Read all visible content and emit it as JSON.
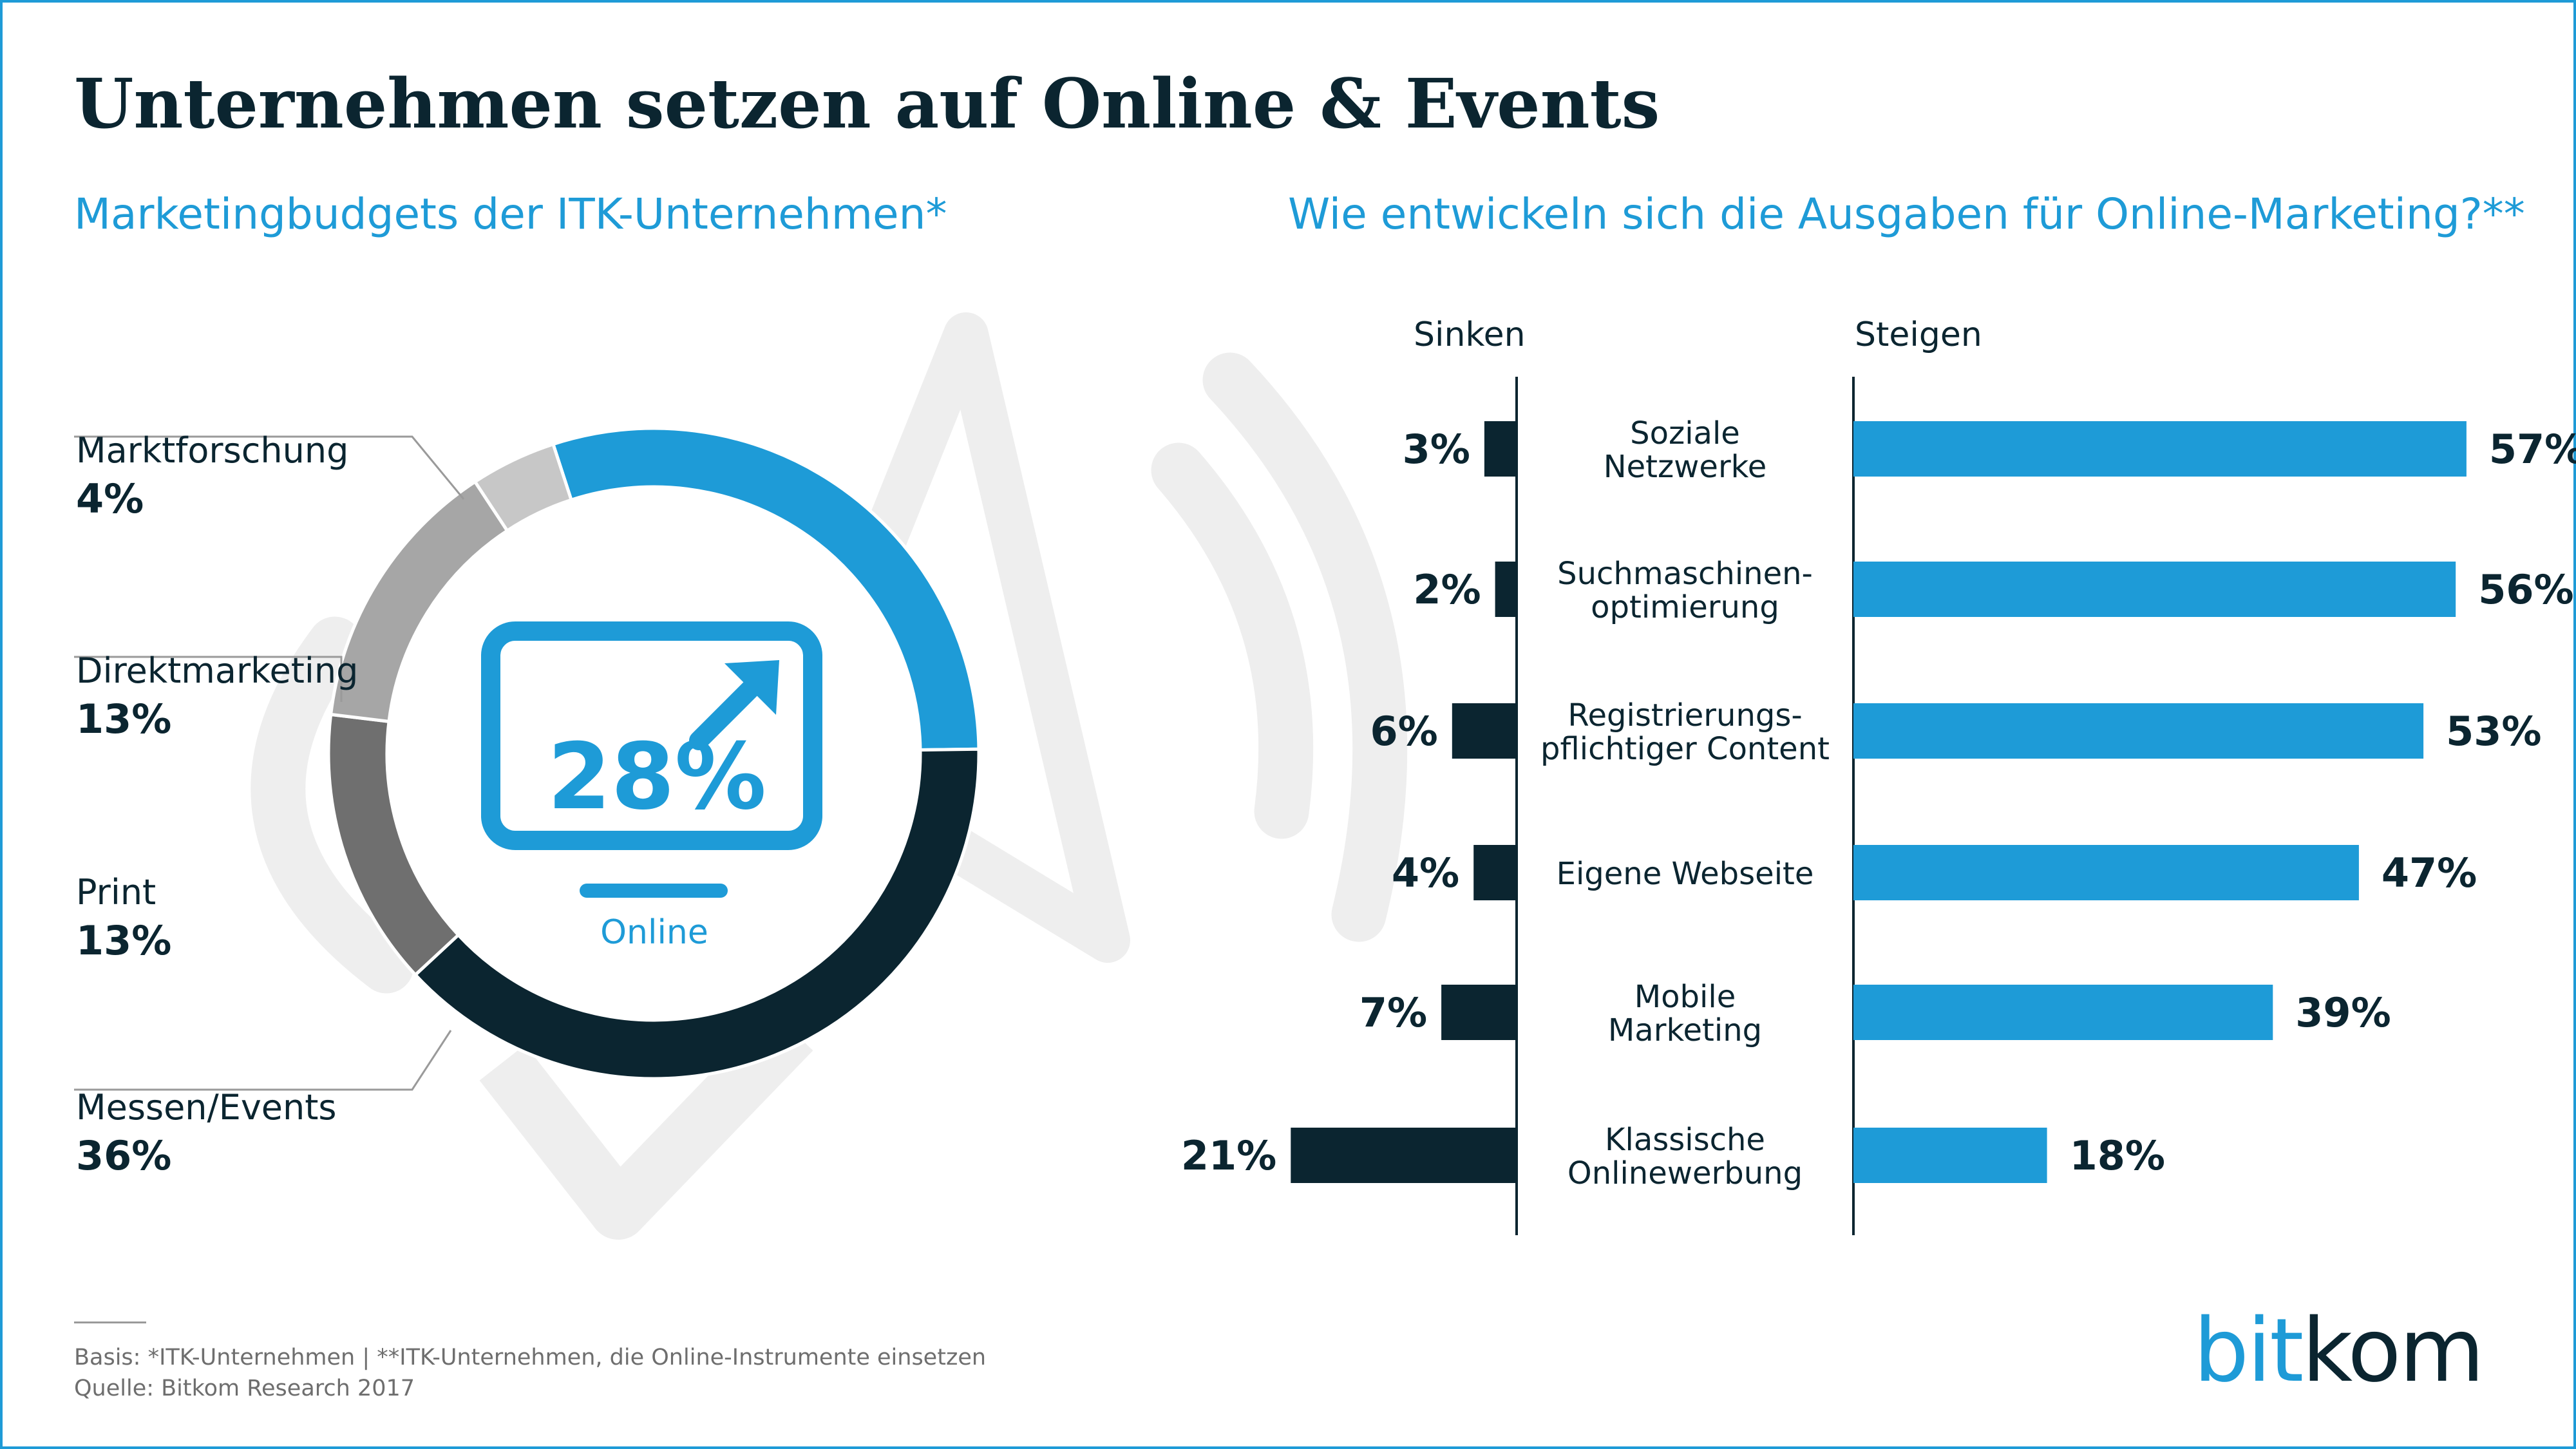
{
  "title": "Unternehmen setzen auf Online & Events",
  "colors": {
    "accent": "#1e9bd7",
    "dark": "#0b2530",
    "gray_light": "#c7c7c7",
    "gray_mid": "#a6a6a6",
    "gray_dark": "#6f6f6f",
    "watermark": "#eeeeee"
  },
  "chart_data": [
    {
      "type": "pie",
      "title": "Marketingbudgets der ITK-Unternehmen*",
      "center_value": "28%",
      "center_label": "Online",
      "center_icon": "monitor-arrow-icon",
      "background_icon": "megaphone-icon",
      "slices": [
        {
          "label": "Online",
          "value": 28,
          "value_label": "28%",
          "color": "#1e9bd7"
        },
        {
          "label": "Messen/Events",
          "value": 36,
          "value_label": "36%",
          "color": "#0b2530"
        },
        {
          "label": "Print",
          "value": 13,
          "value_label": "13%",
          "color": "#6f6f6f"
        },
        {
          "label": "Direktmarketing",
          "value": 13,
          "value_label": "13%",
          "color": "#a6a6a6"
        },
        {
          "label": "Marktforschung",
          "value": 4,
          "value_label": "4%",
          "color": "#c7c7c7"
        }
      ],
      "legend": [
        {
          "label": "Marktforschung",
          "value_label": "4%"
        },
        {
          "label": "Direktmarketing",
          "value_label": "13%"
        },
        {
          "label": "Print",
          "value_label": "13%"
        },
        {
          "label": "Messen/Events",
          "value_label": "36%"
        }
      ]
    },
    {
      "type": "bar",
      "title": "Wie entwickeln sich die Ausgaben für Online-Marketing?**",
      "left_header": "Sinken",
      "right_header": "Steigen",
      "categories": [
        [
          "Soziale",
          "Netzwerke"
        ],
        [
          "Suchmaschinen-",
          "optimierung"
        ],
        [
          "Registrierungs-",
          "pflichtiger Content"
        ],
        [
          "Eigene Webseite"
        ],
        [
          "Mobile",
          "Marketing"
        ],
        [
          "Klassische",
          "Onlinewerbung"
        ]
      ],
      "series": [
        {
          "name": "Sinken",
          "values": [
            3,
            2,
            6,
            4,
            7,
            21
          ],
          "labels": [
            "3%",
            "2%",
            "6%",
            "4%",
            "7%",
            "21%"
          ],
          "color": "#0b2530"
        },
        {
          "name": "Steigen",
          "values": [
            57,
            56,
            53,
            47,
            39,
            18
          ],
          "labels": [
            "57%",
            "56%",
            "53%",
            "47%",
            "39%",
            "18%"
          ],
          "color": "#1e9bd7"
        }
      ]
    }
  ],
  "footer": {
    "basis": "Basis: *ITK-Unternehmen | **ITK-Unternehmen, die Online-Instrumente einsetzen",
    "source": "Quelle: Bitkom Research 2017"
  },
  "brand": {
    "part1": "bit",
    "part2": "kom"
  }
}
